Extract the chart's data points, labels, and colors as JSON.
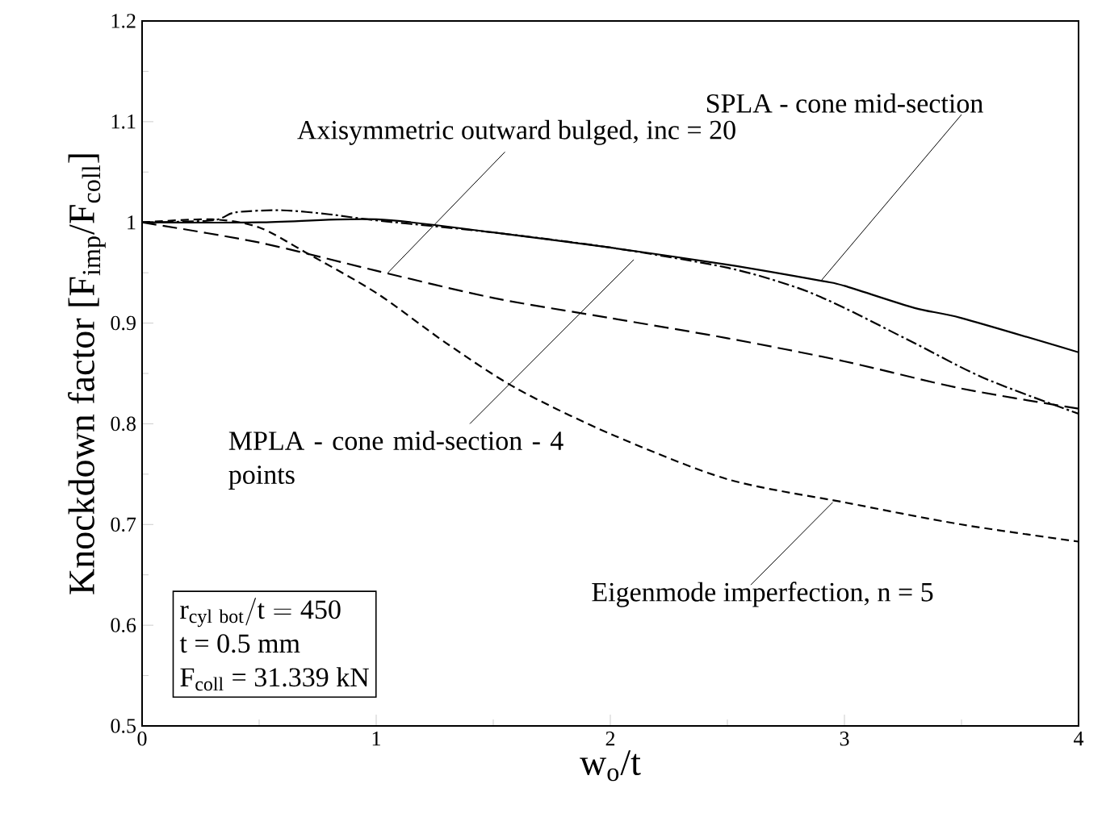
{
  "chart_data": {
    "type": "line",
    "xlabel": "w$_{o}$/t",
    "ylabel": "Knockdown factor [F$_{imp}$/F$_{coll}$]",
    "xlim": [
      0,
      4
    ],
    "ylim": [
      0.5,
      1.2
    ],
    "xticks": [
      0,
      1,
      2,
      3,
      4
    ],
    "yticks": [
      0.5,
      0.6,
      0.7,
      0.8,
      0.9,
      1,
      1.1,
      1.2
    ],
    "grid": false,
    "marker": "none",
    "series": [
      {
        "color": "#000000",
        "line_style": "solid",
        "x": [
          0,
          0.5,
          1,
          1.5,
          2,
          2.5,
          2.9,
          3,
          3.3,
          3.5,
          4
        ],
        "values": [
          1,
          1.0,
          1.003,
          0.99,
          0.975,
          0.958,
          0.942,
          0.937,
          0.915,
          0.905,
          0.871
        ]
      },
      {
        "color": "#000000",
        "line_style": "dashdot",
        "x": [
          0,
          0.3,
          0.4,
          0.6,
          0.8,
          1,
          1.5,
          2,
          2.5,
          2.8,
          3,
          3.3,
          3.6,
          4
        ],
        "values": [
          1,
          1.002,
          1.01,
          1.012,
          1.008,
          1.002,
          0.99,
          0.975,
          0.955,
          0.935,
          0.915,
          0.88,
          0.845,
          0.81
        ]
      },
      {
        "color": "#000000",
        "line_style": "dashed",
        "x": [
          0,
          0.5,
          1,
          1.5,
          2,
          2.5,
          3,
          3.5,
          4
        ],
        "values": [
          1,
          0.98,
          0.952,
          0.925,
          0.905,
          0.885,
          0.862,
          0.835,
          0.815
        ]
      },
      {
        "color": "#000000",
        "line_style": "dashed",
        "x": [
          0,
          0.3,
          0.5,
          0.7,
          1,
          1.3,
          1.6,
          2,
          2.5,
          3,
          3.5,
          4
        ],
        "values": [
          1,
          1.003,
          0.995,
          0.97,
          0.93,
          0.88,
          0.835,
          0.79,
          0.745,
          0.722,
          0.7,
          0.683
        ]
      }
    ],
    "annotations": [
      {
        "text": "SPLA - cone mid-section",
        "x": 2.9,
        "y": 0.942
      },
      {
        "text": "Axisymmetric outward bulged, inc = 20",
        "x": 1.05,
        "y": 0.95
      },
      {
        "text": "MPLA - cone mid-section - 4 points",
        "x": 2.1,
        "y": 0.963
      },
      {
        "text": "Eigenmode imperfection, n = 5",
        "x": 2.95,
        "y": 0.722
      },
      "\\mathrm{r_{cyl\\ bot}/t = 450}",
      "t = 0.5 mm",
      "F$_{coll}$ = 31.339 kN"
    ]
  }
}
